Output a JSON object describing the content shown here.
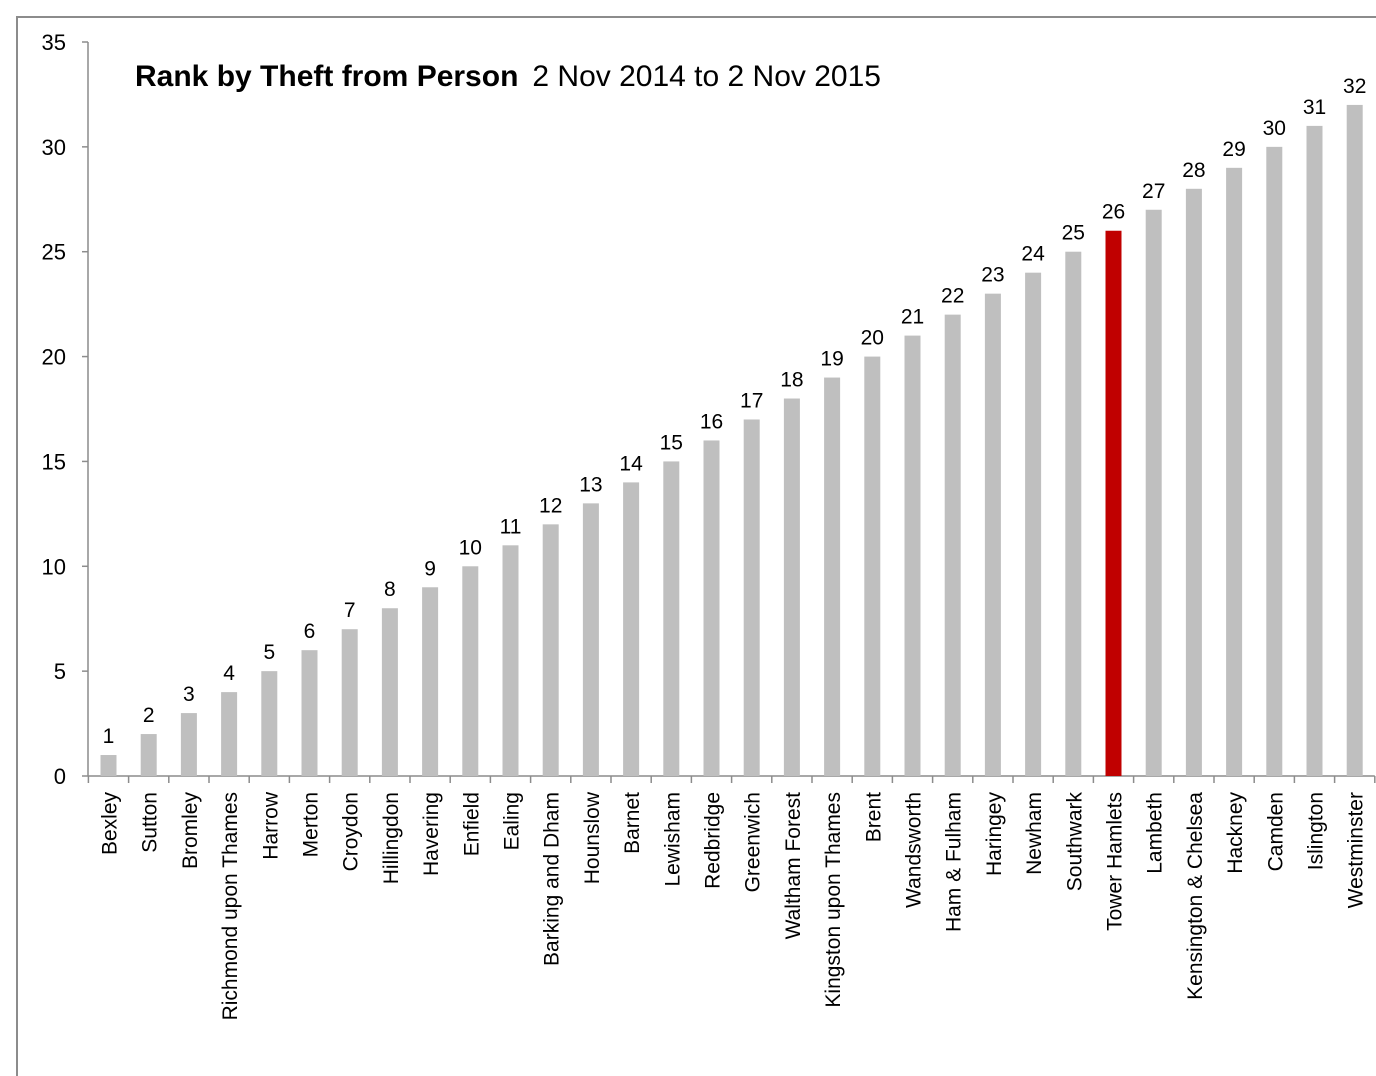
{
  "chart_data": {
    "type": "bar",
    "title": "Rank by Theft from Person",
    "subtitle": "2 Nov 2014 to 2 Nov 2015",
    "categories": [
      "Bexley",
      "Sutton",
      "Bromley",
      "Richmond upon Thames",
      "Harrow",
      "Merton",
      "Croydon",
      "Hillingdon",
      "Havering",
      "Enfield",
      "Ealing",
      "Barking and Dham",
      "Hounslow",
      "Barnet",
      "Lewisham",
      "Redbridge",
      "Greenwich",
      "Waltham Forest",
      "Kingston upon Thames",
      "Brent",
      "Wandsworth",
      "Ham & Fulham",
      "Haringey",
      "Newham",
      "Southwark",
      "Tower Hamlets",
      "Lambeth",
      "Kensington & Chelsea",
      "Hackney",
      "Camden",
      "Islington",
      "Westminster"
    ],
    "values": [
      1,
      2,
      3,
      4,
      5,
      6,
      7,
      8,
      9,
      10,
      11,
      12,
      13,
      14,
      15,
      16,
      17,
      18,
      19,
      20,
      21,
      22,
      23,
      24,
      25,
      26,
      27,
      28,
      29,
      30,
      31,
      32
    ],
    "highlight": "Tower Hamlets",
    "ylim": [
      0,
      35
    ],
    "yticks": [
      0,
      5,
      10,
      15,
      20,
      25,
      30,
      35
    ],
    "xlabel": "",
    "ylabel": "",
    "grid": false,
    "legend": "none",
    "bar_color": "#bfbfbf",
    "highlight_color": "#c00000"
  }
}
